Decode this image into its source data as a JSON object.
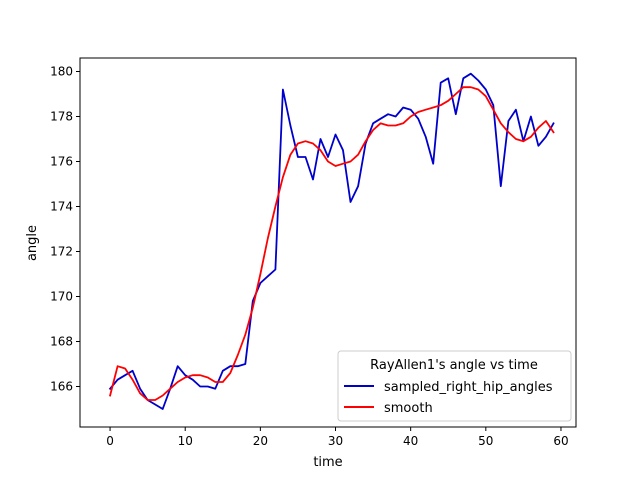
{
  "chart_data": {
    "type": "line",
    "title": "",
    "xlabel": "time",
    "ylabel": "angle",
    "xlim": [
      -4,
      62
    ],
    "ylim": [
      164.2,
      180.6
    ],
    "xticks": [
      0,
      10,
      20,
      30,
      40,
      50,
      60
    ],
    "yticks": [
      166,
      168,
      170,
      172,
      174,
      176,
      178,
      180
    ],
    "grid": false,
    "legend": {
      "title": "RayAllen1's angle vs time",
      "placement": "lower-right"
    },
    "x": [
      0,
      1,
      2,
      3,
      4,
      5,
      6,
      7,
      8,
      9,
      10,
      11,
      12,
      13,
      14,
      15,
      16,
      17,
      18,
      19,
      20,
      21,
      22,
      23,
      24,
      25,
      26,
      27,
      28,
      29,
      30,
      31,
      32,
      33,
      34,
      35,
      36,
      37,
      38,
      39,
      40,
      41,
      42,
      43,
      44,
      45,
      46,
      47,
      48,
      49,
      50,
      51,
      52,
      53,
      54,
      55,
      56,
      57,
      58,
      59
    ],
    "series": [
      {
        "name": "sampled_right_hip_angles",
        "color": "#0000cc",
        "values": [
          165.9,
          166.3,
          166.5,
          166.7,
          165.9,
          165.4,
          165.2,
          165.0,
          165.9,
          166.9,
          166.5,
          166.3,
          166.0,
          166.0,
          165.9,
          166.7,
          166.9,
          166.9,
          167.0,
          169.8,
          170.6,
          170.9,
          171.2,
          179.2,
          177.6,
          176.2,
          176.2,
          175.2,
          177.0,
          176.2,
          177.2,
          176.5,
          174.2,
          174.9,
          176.8,
          177.7,
          177.9,
          178.1,
          178.0,
          178.4,
          178.3,
          177.9,
          177.1,
          175.9,
          179.5,
          179.7,
          178.1,
          179.7,
          179.9,
          179.6,
          179.2,
          178.5,
          174.9,
          177.8,
          178.3,
          176.9,
          178.0,
          176.7,
          177.1,
          177.7
        ]
      },
      {
        "name": "smooth",
        "color": "#ff0000",
        "values": [
          165.6,
          166.9,
          166.8,
          166.3,
          165.7,
          165.4,
          165.4,
          165.6,
          165.9,
          166.2,
          166.4,
          166.5,
          166.5,
          166.4,
          166.2,
          166.2,
          166.6,
          167.4,
          168.3,
          169.5,
          171.0,
          172.6,
          174.0,
          175.3,
          176.3,
          176.8,
          176.9,
          176.8,
          176.5,
          176.0,
          175.8,
          175.9,
          176.0,
          176.3,
          176.9,
          177.4,
          177.7,
          177.6,
          177.6,
          177.7,
          178.0,
          178.2,
          178.3,
          178.4,
          178.5,
          178.7,
          179.0,
          179.3,
          179.3,
          179.2,
          178.9,
          178.3,
          177.7,
          177.3,
          177.0,
          176.9,
          177.1,
          177.5,
          177.8,
          177.3
        ]
      }
    ]
  }
}
